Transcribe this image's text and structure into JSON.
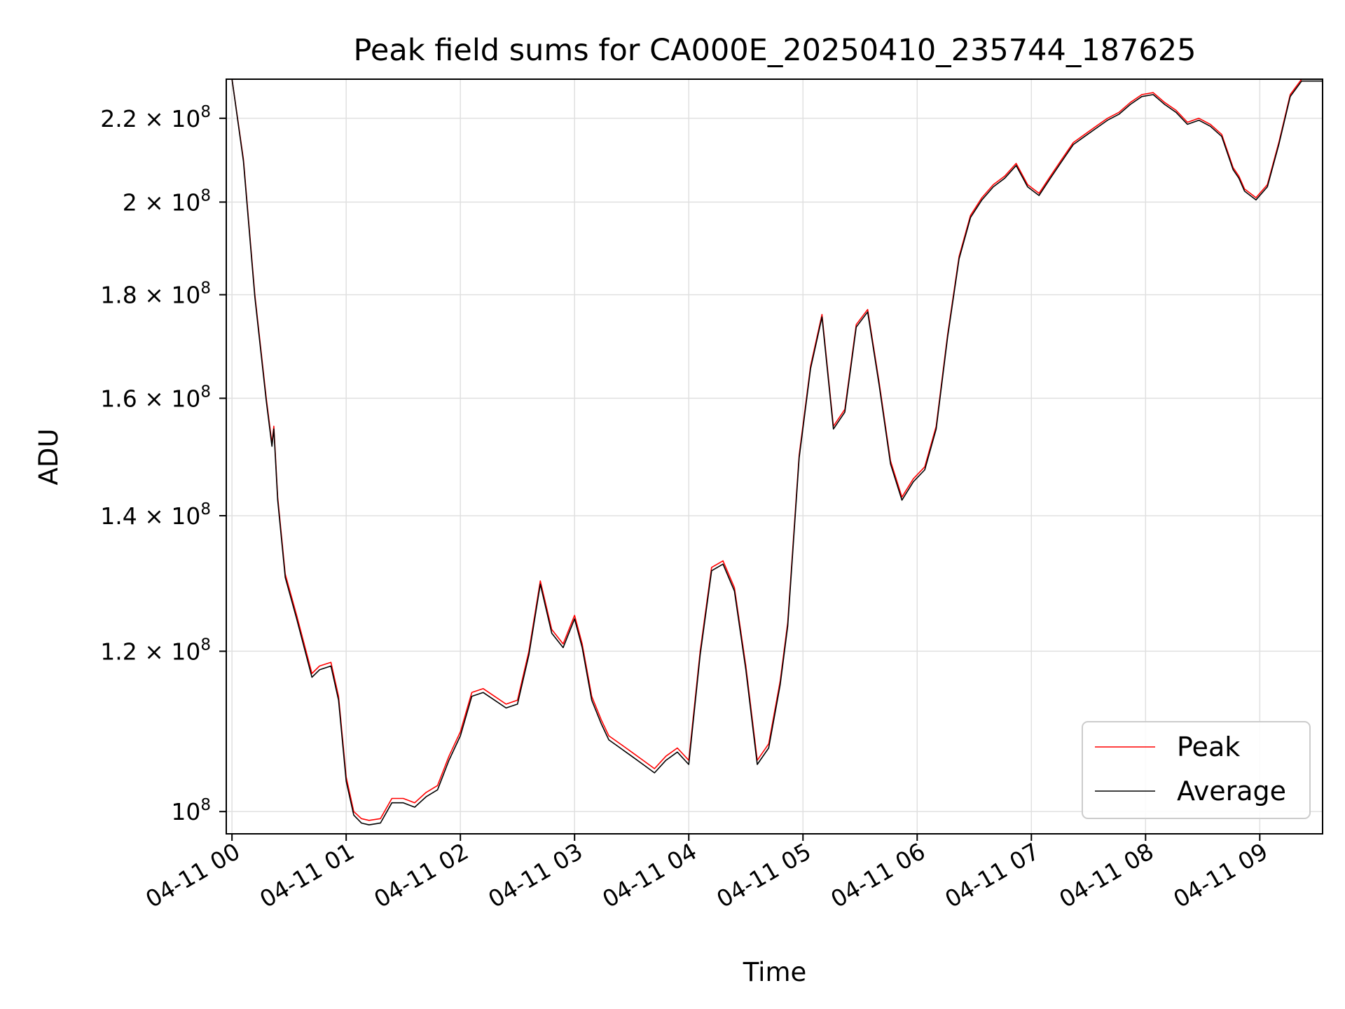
{
  "chart_data": {
    "type": "line",
    "title": "Peak field sums for CA000E_20250410_235744_187625",
    "xlabel": "Time",
    "ylabel": "ADU",
    "y_scale": "log",
    "grid": true,
    "legend_position": "lower right",
    "xlim": [
      "2025-04-10 23:57",
      "2025-04-11 09:33"
    ],
    "ylim": [
      97500000,
      230000000
    ],
    "x_ticks": [
      "04-11 00",
      "04-11 01",
      "04-11 02",
      "04-11 03",
      "04-11 04",
      "04-11 05",
      "04-11 06",
      "04-11 07",
      "04-11 08",
      "04-11 09"
    ],
    "x_tick_times": [
      "00:00",
      "01:00",
      "02:00",
      "03:00",
      "04:00",
      "05:00",
      "06:00",
      "07:00",
      "08:00",
      "09:00"
    ],
    "y_ticks": [
      {
        "value": 100000000,
        "mantissa": "",
        "exp": "8"
      },
      {
        "value": 120000000,
        "mantissa": "1.2",
        "exp": "8"
      },
      {
        "value": 140000000,
        "mantissa": "1.4",
        "exp": "8"
      },
      {
        "value": 160000000,
        "mantissa": "1.6",
        "exp": "8"
      },
      {
        "value": 180000000,
        "mantissa": "1.8",
        "exp": "8"
      },
      {
        "value": 200000000,
        "mantissa": "2",
        "exp": "8"
      },
      {
        "value": 220000000,
        "mantissa": "2.2",
        "exp": "8"
      }
    ],
    "x_time_of_first_point": "2025-04-11 00:00",
    "x_times": [
      "00:00",
      "00:06",
      "00:12",
      "00:18",
      "00:21",
      "00:22",
      "00:24",
      "00:28",
      "00:34",
      "00:42",
      "00:46",
      "00:52",
      "00:56",
      "01:00",
      "01:04",
      "01:08",
      "01:12",
      "01:18",
      "01:24",
      "01:30",
      "01:36",
      "01:42",
      "01:48",
      "01:54",
      "02:00",
      "02:06",
      "02:12",
      "02:18",
      "02:24",
      "02:30",
      "02:36",
      "02:42",
      "02:48",
      "02:54",
      "03:00",
      "03:04",
      "03:09",
      "03:14",
      "03:18",
      "03:24",
      "03:30",
      "03:36",
      "03:42",
      "03:48",
      "03:54",
      "04:00",
      "04:06",
      "04:12",
      "04:18",
      "04:24",
      "04:30",
      "04:36",
      "04:42",
      "04:48",
      "04:52",
      "04:58",
      "05:04",
      "05:10",
      "05:16",
      "05:22",
      "05:28",
      "05:34",
      "05:40",
      "05:46",
      "05:52",
      "05:58",
      "06:04",
      "06:10",
      "06:16",
      "06:22",
      "06:28",
      "06:34",
      "06:40",
      "06:46",
      "06:52",
      "06:58",
      "07:04",
      "07:10",
      "07:16",
      "07:22",
      "07:28",
      "07:34",
      "07:40",
      "07:46",
      "07:52",
      "07:58",
      "08:04",
      "08:10",
      "08:16",
      "08:22",
      "08:28",
      "08:34",
      "08:40",
      "08:46",
      "08:49",
      "08:52",
      "08:58",
      "09:04",
      "09:10",
      "09:16",
      "09:22",
      "09:28",
      "09:33"
    ],
    "series": [
      {
        "name": "Peak",
        "color": "#ff0000",
        "values": [
          230000000,
          210000000,
          180000000,
          160000000,
          152000000,
          155000000,
          143000000,
          131000000,
          125000000,
          117000000,
          118000000,
          118500000,
          114000000,
          104000000,
          100000000,
          99200000,
          99000000,
          99200000,
          101500000,
          101500000,
          101000000,
          102200000,
          103000000,
          106500000,
          109500000,
          114500000,
          115000000,
          114000000,
          113000000,
          113500000,
          120000000,
          130000000,
          123000000,
          121000000,
          125000000,
          121000000,
          114000000,
          111000000,
          109000000,
          108000000,
          107000000,
          106000000,
          105000000,
          106500000,
          107500000,
          106000000,
          120000000,
          132000000,
          133000000,
          129000000,
          118000000,
          106000000,
          108000000,
          116000000,
          124000000,
          150000000,
          166000000,
          176000000,
          155000000,
          158000000,
          174000000,
          177000000,
          163000000,
          149000000,
          143000000,
          146000000,
          148000000,
          155000000,
          172000000,
          188000000,
          197000000,
          201000000,
          204000000,
          206000000,
          209000000,
          204000000,
          202000000,
          206000000,
          210000000,
          214000000,
          216000000,
          218000000,
          220000000,
          221500000,
          224000000,
          226000000,
          226500000,
          224000000,
          222000000,
          219000000,
          220000000,
          218500000,
          216000000,
          208000000,
          206000000,
          203000000,
          201000000,
          204000000,
          214000000,
          226000000,
          230000000,
          230000000,
          230000000
        ]
      },
      {
        "name": "Average",
        "color": "#000000",
        "values": [
          230000000,
          209500000,
          179500000,
          159500000,
          151500000,
          154500000,
          142500000,
          130500000,
          124500000,
          116500000,
          117500000,
          118000000,
          113500000,
          103500000,
          99600000,
          98700000,
          98500000,
          98700000,
          101000000,
          101000000,
          100500000,
          101700000,
          102500000,
          106000000,
          109000000,
          114000000,
          114500000,
          113500000,
          112500000,
          113000000,
          119500000,
          129500000,
          122500000,
          120500000,
          124500000,
          120500000,
          113500000,
          110500000,
          108500000,
          107500000,
          106500000,
          105500000,
          104500000,
          106000000,
          107000000,
          105500000,
          119500000,
          131500000,
          132500000,
          128500000,
          117500000,
          105500000,
          107500000,
          115500000,
          123500000,
          149500000,
          165500000,
          175500000,
          154500000,
          157500000,
          173500000,
          176500000,
          162500000,
          148500000,
          142500000,
          145500000,
          147500000,
          154500000,
          171500000,
          187500000,
          196500000,
          200500000,
          203500000,
          205500000,
          208500000,
          203500000,
          201500000,
          205500000,
          209500000,
          213500000,
          215500000,
          217500000,
          219500000,
          221000000,
          223500000,
          225500000,
          226000000,
          223500000,
          221500000,
          218500000,
          219500000,
          218000000,
          215500000,
          207500000,
          205500000,
          202500000,
          200500000,
          203500000,
          213500000,
          225500000,
          229500000,
          229500000,
          229500000
        ]
      }
    ]
  }
}
